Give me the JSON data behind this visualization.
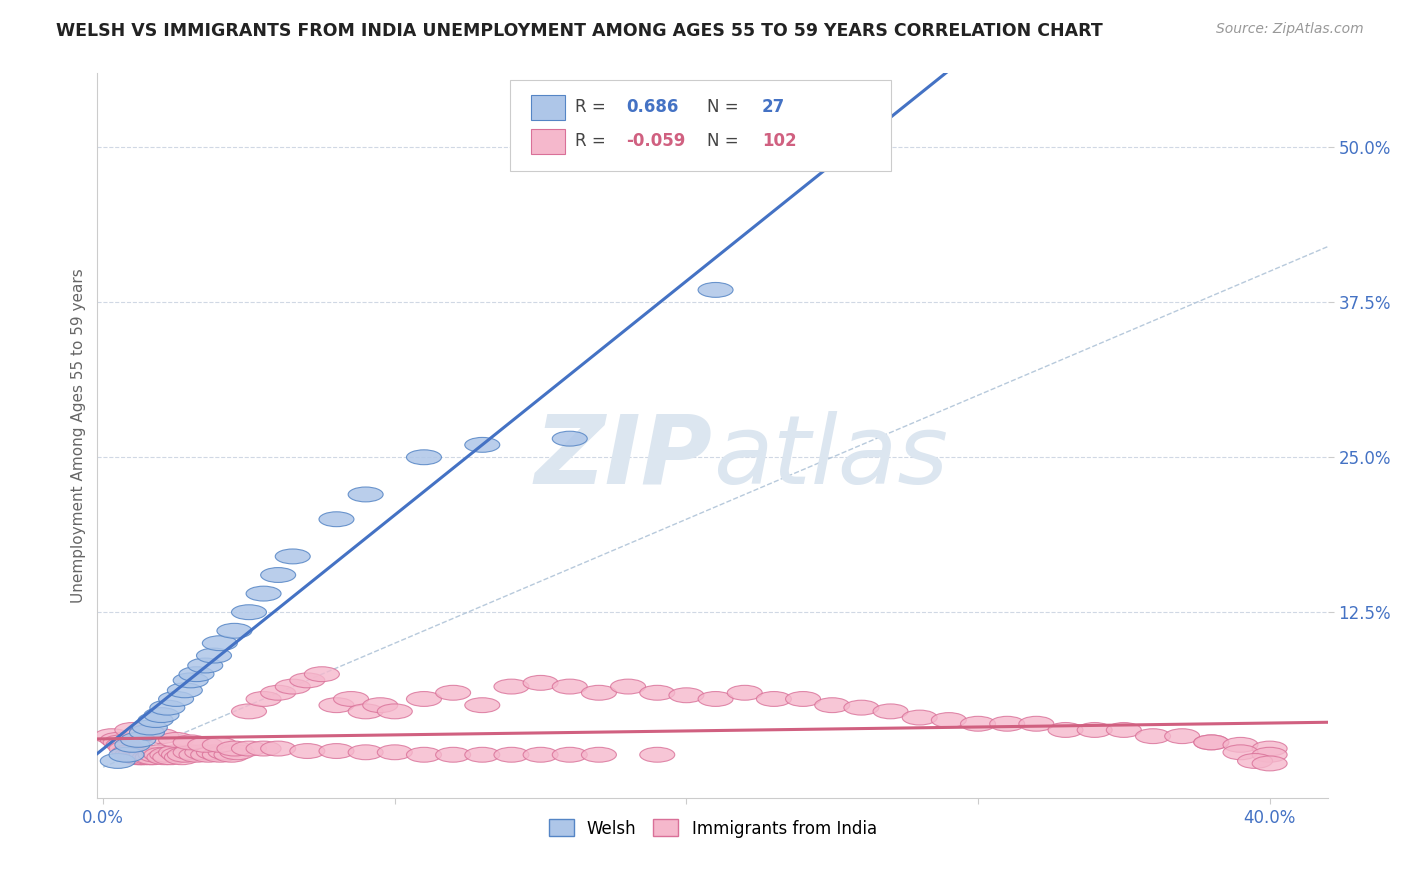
{
  "title": "WELSH VS IMMIGRANTS FROM INDIA UNEMPLOYMENT AMONG AGES 55 TO 59 YEARS CORRELATION CHART",
  "source": "Source: ZipAtlas.com",
  "ylabel": "Unemployment Among Ages 55 to 59 years",
  "xlim": [
    -0.002,
    0.42
  ],
  "ylim": [
    -0.025,
    0.56
  ],
  "xtick_vals": [
    0.0,
    0.1,
    0.2,
    0.3,
    0.4
  ],
  "xtick_labels": [
    "0.0%",
    "",
    "",
    "",
    "40.0%"
  ],
  "ytick_vals": [
    0.125,
    0.25,
    0.375,
    0.5
  ],
  "ytick_labels": [
    "12.5%",
    "25.0%",
    "37.5%",
    "50.0%"
  ],
  "welsh_R": 0.686,
  "welsh_N": 27,
  "india_R": -0.059,
  "india_N": 102,
  "welsh_color": "#aec6e8",
  "welsh_edge_color": "#5585c5",
  "welsh_line_color": "#4472c4",
  "india_color": "#f5b8cc",
  "india_edge_color": "#d97098",
  "india_line_color": "#d06080",
  "ref_line_color": "#b0c4d8",
  "watermark_color": "#dce6f0",
  "background_color": "#ffffff",
  "grid_color": "#d0d8e4",
  "welsh_x": [
    0.005,
    0.008,
    0.01,
    0.012,
    0.015,
    0.016,
    0.018,
    0.02,
    0.022,
    0.025,
    0.028,
    0.03,
    0.032,
    0.035,
    0.038,
    0.04,
    0.045,
    0.05,
    0.055,
    0.06,
    0.065,
    0.08,
    0.09,
    0.11,
    0.13,
    0.16,
    0.21
  ],
  "welsh_y": [
    0.005,
    0.01,
    0.018,
    0.022,
    0.028,
    0.032,
    0.038,
    0.042,
    0.048,
    0.055,
    0.062,
    0.07,
    0.075,
    0.082,
    0.09,
    0.1,
    0.11,
    0.125,
    0.14,
    0.155,
    0.17,
    0.2,
    0.22,
    0.25,
    0.26,
    0.265,
    0.385
  ],
  "india_x": [
    0.003,
    0.005,
    0.006,
    0.007,
    0.008,
    0.009,
    0.01,
    0.011,
    0.012,
    0.013,
    0.014,
    0.015,
    0.016,
    0.017,
    0.018,
    0.019,
    0.02,
    0.021,
    0.022,
    0.023,
    0.025,
    0.026,
    0.027,
    0.028,
    0.03,
    0.032,
    0.034,
    0.036,
    0.038,
    0.04,
    0.042,
    0.044,
    0.046,
    0.05,
    0.055,
    0.06,
    0.065,
    0.07,
    0.075,
    0.08,
    0.085,
    0.09,
    0.095,
    0.1,
    0.11,
    0.12,
    0.13,
    0.14,
    0.15,
    0.16,
    0.17,
    0.18,
    0.19,
    0.2,
    0.21,
    0.22,
    0.23,
    0.24,
    0.25,
    0.26,
    0.27,
    0.28,
    0.29,
    0.3,
    0.31,
    0.32,
    0.33,
    0.34,
    0.35,
    0.36,
    0.37,
    0.38,
    0.01,
    0.015,
    0.02,
    0.025,
    0.03,
    0.035,
    0.04,
    0.045,
    0.05,
    0.055,
    0.06,
    0.07,
    0.08,
    0.09,
    0.1,
    0.11,
    0.12,
    0.13,
    0.14,
    0.15,
    0.16,
    0.17,
    0.19,
    0.38,
    0.39,
    0.4,
    0.39,
    0.4,
    0.395,
    0.4
  ],
  "india_y": [
    0.025,
    0.022,
    0.02,
    0.018,
    0.015,
    0.012,
    0.01,
    0.01,
    0.008,
    0.008,
    0.008,
    0.01,
    0.008,
    0.008,
    0.01,
    0.012,
    0.01,
    0.008,
    0.01,
    0.008,
    0.012,
    0.01,
    0.008,
    0.01,
    0.012,
    0.01,
    0.012,
    0.01,
    0.012,
    0.01,
    0.012,
    0.01,
    0.012,
    0.045,
    0.055,
    0.06,
    0.065,
    0.07,
    0.075,
    0.05,
    0.055,
    0.045,
    0.05,
    0.045,
    0.055,
    0.06,
    0.05,
    0.065,
    0.068,
    0.065,
    0.06,
    0.065,
    0.06,
    0.058,
    0.055,
    0.06,
    0.055,
    0.055,
    0.05,
    0.048,
    0.045,
    0.04,
    0.038,
    0.035,
    0.035,
    0.035,
    0.03,
    0.03,
    0.03,
    0.025,
    0.025,
    0.02,
    0.03,
    0.028,
    0.025,
    0.022,
    0.02,
    0.018,
    0.018,
    0.015,
    0.015,
    0.015,
    0.015,
    0.013,
    0.013,
    0.012,
    0.012,
    0.01,
    0.01,
    0.01,
    0.01,
    0.01,
    0.01,
    0.01,
    0.01,
    0.02,
    0.018,
    0.015,
    0.012,
    0.01,
    0.005,
    0.003
  ]
}
